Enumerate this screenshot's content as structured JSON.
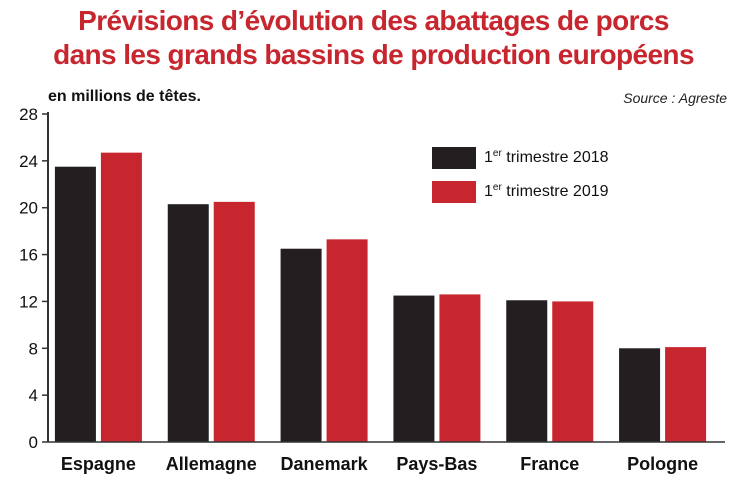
{
  "title_line1": "Prévisions d’évolution des abattages de porcs",
  "title_line2": "dans les grands bassins de production européens",
  "subtitle": "en millions de têtes.",
  "source": "Source : Agreste",
  "colors": {
    "series1": "#231f20",
    "series2": "#c8262f",
    "title": "#c8262f"
  },
  "legend": [
    {
      "prefix": "1",
      "sup": "er",
      "suffix": " trimestre 2018"
    },
    {
      "prefix": "1",
      "sup": "er",
      "suffix": " trimestre 2019"
    }
  ],
  "chart_data": {
    "type": "bar",
    "categories": [
      "Espagne",
      "Allemagne",
      "Danemark",
      "Pays-Bas",
      "France",
      "Pologne"
    ],
    "series": [
      {
        "name": "1er trimestre 2018",
        "values": [
          23.5,
          20.3,
          16.5,
          12.5,
          12.1,
          8.0
        ]
      },
      {
        "name": "1er trimestre 2019",
        "values": [
          24.7,
          20.5,
          17.3,
          12.6,
          12.0,
          8.1
        ]
      }
    ],
    "ylim": [
      0,
      28
    ],
    "yticks": [
      0,
      4,
      8,
      12,
      16,
      20,
      24,
      28
    ],
    "legend_position": "top-right",
    "grid": false
  }
}
